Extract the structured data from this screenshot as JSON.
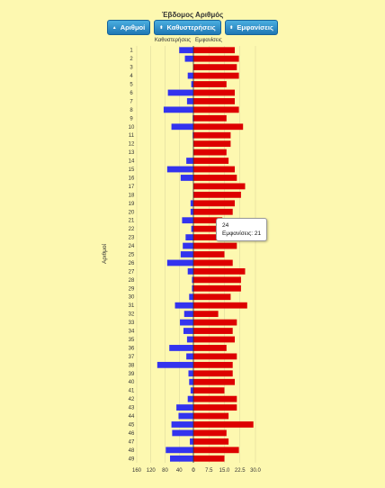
{
  "title": "Έβδομος Αριθμός",
  "buttons": [
    {
      "label": "Αριθμοί",
      "icon": "sort-up-icon",
      "glyph": "▲"
    },
    {
      "label": "Καθυστερήσεις",
      "icon": "sort-icon",
      "glyph": "⬍"
    },
    {
      "label": "Εμφανίσεις",
      "icon": "sort-icon",
      "glyph": "⬍"
    }
  ],
  "tooltip": {
    "number": "24",
    "text": "Εμφανίσεις: 21"
  },
  "colors": {
    "delays": "#3333ee",
    "appearances": "#dd0000",
    "background": "#fdf8b0"
  },
  "chart_data": {
    "type": "bar",
    "orientation": "horizontal-diverging",
    "ylabel": "Αριθμοί",
    "categories": [
      "1",
      "2",
      "3",
      "4",
      "5",
      "6",
      "7",
      "8",
      "9",
      "10",
      "11",
      "12",
      "13",
      "14",
      "15",
      "16",
      "17",
      "18",
      "19",
      "20",
      "21",
      "22",
      "23",
      "24",
      "25",
      "26",
      "27",
      "28",
      "29",
      "30",
      "31",
      "32",
      "33",
      "34",
      "35",
      "36",
      "37",
      "38",
      "39",
      "40",
      "41",
      "42",
      "43",
      "44",
      "45",
      "46",
      "47",
      "48",
      "49"
    ],
    "series": [
      {
        "name": "Καθυστερήσεις",
        "side": "left",
        "values": [
          40,
          24,
          0,
          16,
          6,
          72,
          18,
          84,
          2,
          62,
          2,
          0,
          0,
          20,
          74,
          36,
          0,
          0,
          8,
          8,
          32,
          6,
          22,
          30,
          36,
          74,
          16,
          4,
          4,
          12,
          52,
          26,
          38,
          28,
          18,
          68,
          20,
          102,
          14,
          12,
          8,
          16,
          48,
          42,
          62,
          60,
          10,
          78,
          66
        ]
      },
      {
        "name": "Εμφανίσεις",
        "side": "right",
        "values": [
          20,
          22,
          21,
          22,
          16,
          20,
          20,
          22,
          16,
          24,
          18,
          18,
          16,
          17,
          20,
          21,
          25,
          23,
          20,
          19,
          14,
          14,
          14,
          21,
          15,
          19,
          25,
          23,
          23,
          18,
          26,
          12,
          21,
          19,
          20,
          16,
          21,
          19,
          19,
          20,
          15,
          21,
          21,
          17,
          29,
          16,
          17,
          22,
          15
        ]
      }
    ],
    "left_axis": {
      "ticks": [
        "160",
        "120",
        "80",
        "40",
        "0"
      ],
      "range": [
        0,
        160
      ]
    },
    "right_axis": {
      "ticks": [
        "0",
        "7.5",
        "15.0",
        "22.5",
        "30.0"
      ],
      "range": [
        0,
        30
      ]
    }
  }
}
